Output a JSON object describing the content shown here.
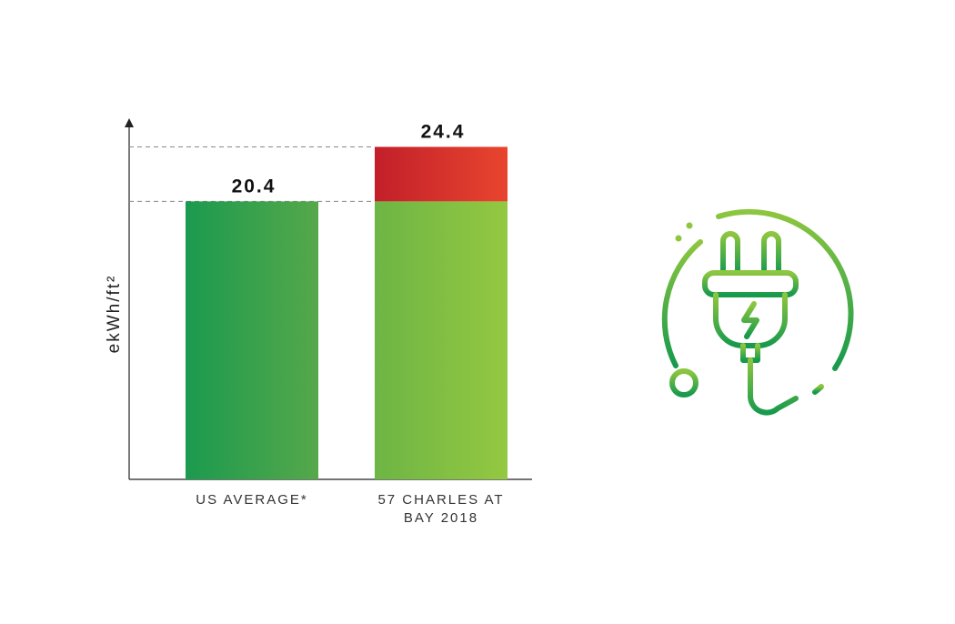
{
  "chart_data": {
    "type": "bar",
    "y_label": "ekWh/ft²",
    "categories": [
      "US AVERAGE*",
      "57 CHARLES AT BAY 2018"
    ],
    "values": [
      20.4,
      24.4
    ],
    "bar_colors": [
      [
        "#1b9a4f",
        "#55a84a"
      ],
      [
        "#6db545",
        "#94c841"
      ]
    ],
    "excess_color": [
      "#c21f2a",
      "#e8452f"
    ],
    "ylim": [
      0,
      26.5
    ],
    "reference_lines": true
  }
}
